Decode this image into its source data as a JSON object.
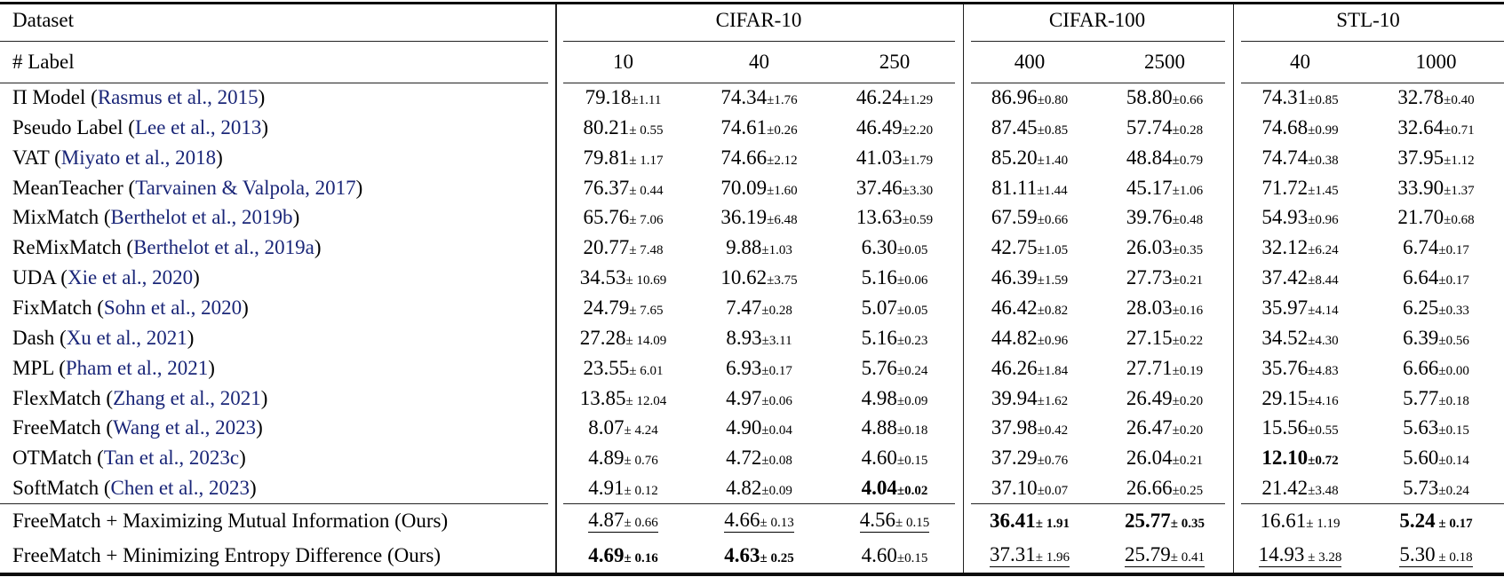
{
  "header": {
    "dataset": "Dataset",
    "label": "# Label"
  },
  "groups": [
    {
      "name": "CIFAR-10",
      "cols": [
        "10",
        "40",
        "250"
      ]
    },
    {
      "name": "CIFAR-100",
      "cols": [
        "400",
        "2500"
      ]
    },
    {
      "name": "STL-10",
      "cols": [
        "40",
        "1000"
      ]
    }
  ],
  "colors": {
    "citation": "#1a2678",
    "rule": "#0c0c0c"
  },
  "rows": [
    {
      "method": "Π Model",
      "cite": "Rasmus et al., 2015",
      "cells": [
        {
          "v": "79.18",
          "pm": "±1.11"
        },
        {
          "v": "74.34",
          "pm": "±1.76"
        },
        {
          "v": "46.24",
          "pm": "±1.29"
        },
        {
          "v": "86.96",
          "pm": "±0.80"
        },
        {
          "v": "58.80",
          "pm": "±0.66"
        },
        {
          "v": "74.31",
          "pm": "±0.85"
        },
        {
          "v": "32.78",
          "pm": "±0.40"
        }
      ]
    },
    {
      "method": "Pseudo Label",
      "cite": "Lee et al., 2013",
      "cells": [
        {
          "v": "80.21",
          "pm": "± 0.55"
        },
        {
          "v": "74.61",
          "pm": "±0.26"
        },
        {
          "v": "46.49",
          "pm": "±2.20"
        },
        {
          "v": "87.45",
          "pm": "±0.85"
        },
        {
          "v": "57.74",
          "pm": "±0.28"
        },
        {
          "v": "74.68",
          "pm": "±0.99"
        },
        {
          "v": "32.64",
          "pm": "±0.71"
        }
      ]
    },
    {
      "method": "VAT",
      "cite": "Miyato et al., 2018",
      "cells": [
        {
          "v": "79.81",
          "pm": "± 1.17"
        },
        {
          "v": "74.66",
          "pm": "±2.12"
        },
        {
          "v": "41.03",
          "pm": "±1.79"
        },
        {
          "v": "85.20",
          "pm": "±1.40"
        },
        {
          "v": "48.84",
          "pm": "±0.79"
        },
        {
          "v": "74.74",
          "pm": "±0.38"
        },
        {
          "v": "37.95",
          "pm": "±1.12"
        }
      ]
    },
    {
      "method": "MeanTeacher",
      "cite": "Tarvainen & Valpola, 2017",
      "cells": [
        {
          "v": "76.37",
          "pm": "± 0.44"
        },
        {
          "v": "70.09",
          "pm": "±1.60"
        },
        {
          "v": "37.46",
          "pm": "±3.30"
        },
        {
          "v": "81.11",
          "pm": "±1.44"
        },
        {
          "v": "45.17",
          "pm": "±1.06"
        },
        {
          "v": "71.72",
          "pm": "±1.45"
        },
        {
          "v": "33.90",
          "pm": "±1.37"
        }
      ]
    },
    {
      "method": "MixMatch",
      "cite": "Berthelot et al., 2019b",
      "cells": [
        {
          "v": "65.76",
          "pm": "± 7.06"
        },
        {
          "v": "36.19",
          "pm": "±6.48"
        },
        {
          "v": "13.63",
          "pm": "±0.59"
        },
        {
          "v": "67.59",
          "pm": "±0.66"
        },
        {
          "v": "39.76",
          "pm": "±0.48"
        },
        {
          "v": "54.93",
          "pm": "±0.96"
        },
        {
          "v": "21.70",
          "pm": "±0.68"
        }
      ]
    },
    {
      "method": "ReMixMatch",
      "cite": "Berthelot et al., 2019a",
      "cells": [
        {
          "v": "20.77",
          "pm": "± 7.48"
        },
        {
          "v": "9.88",
          "pm": "±1.03"
        },
        {
          "v": "6.30",
          "pm": "±0.05"
        },
        {
          "v": "42.75",
          "pm": "±1.05"
        },
        {
          "v": "26.03",
          "pm": "±0.35"
        },
        {
          "v": "32.12",
          "pm": "±6.24"
        },
        {
          "v": "6.74",
          "pm": "±0.17"
        }
      ]
    },
    {
      "method": "UDA",
      "cite": "Xie et al., 2020",
      "cells": [
        {
          "v": "34.53",
          "pm": "± 10.69"
        },
        {
          "v": "10.62",
          "pm": "±3.75"
        },
        {
          "v": "5.16",
          "pm": "±0.06"
        },
        {
          "v": "46.39",
          "pm": "±1.59"
        },
        {
          "v": "27.73",
          "pm": "±0.21"
        },
        {
          "v": "37.42",
          "pm": "±8.44"
        },
        {
          "v": "6.64",
          "pm": "±0.17"
        }
      ]
    },
    {
      "method": "FixMatch",
      "cite": "Sohn et al., 2020",
      "cells": [
        {
          "v": "24.79",
          "pm": "± 7.65"
        },
        {
          "v": "7.47",
          "pm": "±0.28"
        },
        {
          "v": "5.07",
          "pm": "±0.05"
        },
        {
          "v": "46.42",
          "pm": "±0.82"
        },
        {
          "v": "28.03",
          "pm": "±0.16"
        },
        {
          "v": "35.97",
          "pm": "±4.14"
        },
        {
          "v": "6.25",
          "pm": "±0.33"
        }
      ]
    },
    {
      "method": "Dash",
      "cite": "Xu et al., 2021",
      "cells": [
        {
          "v": "27.28",
          "pm": "± 14.09"
        },
        {
          "v": "8.93",
          "pm": "±3.11"
        },
        {
          "v": "5.16",
          "pm": "±0.23"
        },
        {
          "v": "44.82",
          "pm": "±0.96"
        },
        {
          "v": "27.15",
          "pm": "±0.22"
        },
        {
          "v": "34.52",
          "pm": "±4.30"
        },
        {
          "v": "6.39",
          "pm": "±0.56"
        }
      ]
    },
    {
      "method": "MPL",
      "cite": "Pham et al., 2021",
      "cells": [
        {
          "v": "23.55",
          "pm": "± 6.01"
        },
        {
          "v": "6.93",
          "pm": "±0.17"
        },
        {
          "v": "5.76",
          "pm": "±0.24"
        },
        {
          "v": "46.26",
          "pm": "±1.84"
        },
        {
          "v": "27.71",
          "pm": "±0.19"
        },
        {
          "v": "35.76",
          "pm": "±4.83"
        },
        {
          "v": "6.66",
          "pm": "±0.00"
        }
      ]
    },
    {
      "method": "FlexMatch",
      "cite": "Zhang et al., 2021",
      "cells": [
        {
          "v": "13.85",
          "pm": "± 12.04"
        },
        {
          "v": "4.97",
          "pm": "±0.06"
        },
        {
          "v": "4.98",
          "pm": "±0.09"
        },
        {
          "v": "39.94",
          "pm": "±1.62"
        },
        {
          "v": "26.49",
          "pm": "±0.20"
        },
        {
          "v": "29.15",
          "pm": "±4.16"
        },
        {
          "v": "5.77",
          "pm": "±0.18"
        }
      ]
    },
    {
      "method": "FreeMatch",
      "cite": "Wang et al., 2023",
      "cells": [
        {
          "v": "8.07",
          "pm": "± 4.24"
        },
        {
          "v": "4.90",
          "pm": "±0.04"
        },
        {
          "v": "4.88",
          "pm": "±0.18"
        },
        {
          "v": "37.98",
          "pm": "±0.42"
        },
        {
          "v": "26.47",
          "pm": "±0.20"
        },
        {
          "v": "15.56",
          "pm": "±0.55"
        },
        {
          "v": "5.63",
          "pm": "±0.15"
        }
      ]
    },
    {
      "method": "OTMatch",
      "cite": "Tan et al., 2023c",
      "cells": [
        {
          "v": "4.89",
          "pm": "± 0.76"
        },
        {
          "v": "4.72",
          "pm": "±0.08"
        },
        {
          "v": "4.60",
          "pm": "±0.15"
        },
        {
          "v": "37.29",
          "pm": "±0.76"
        },
        {
          "v": "26.04",
          "pm": "±0.21"
        },
        {
          "v": "12.10",
          "pm": "±0.72",
          "b": true
        },
        {
          "v": "5.60",
          "pm": "±0.14"
        }
      ]
    },
    {
      "method": "SoftMatch",
      "cite": "Chen et al., 2023",
      "cells": [
        {
          "v": "4.91",
          "pm": "± 0.12"
        },
        {
          "v": "4.82",
          "pm": "±0.09"
        },
        {
          "v": "4.04",
          "pm": "±0.02",
          "b": true
        },
        {
          "v": "37.10",
          "pm": "±0.07"
        },
        {
          "v": "26.66",
          "pm": "±0.25"
        },
        {
          "v": "21.42",
          "pm": "±3.48"
        },
        {
          "v": "5.73",
          "pm": "±0.24"
        }
      ]
    },
    {
      "method": "FreeMatch + Maximizing Mutual Information (Ours)",
      "cite": null,
      "ours": true,
      "cells": [
        {
          "v": "4.87",
          "pm": "± 0.66",
          "u": true
        },
        {
          "v": "4.66",
          "pm": "± 0.13",
          "u": true
        },
        {
          "v": "4.56",
          "pm": "± 0.15",
          "u": true
        },
        {
          "v": "36.41",
          "pm": "± 1.91",
          "b": true
        },
        {
          "v": "25.77",
          "pm": "± 0.35",
          "b": true
        },
        {
          "v": "16.61",
          "pm": "± 1.19"
        },
        {
          "v": "5.24",
          "pm": " ± 0.17",
          "b": true
        }
      ]
    },
    {
      "method": "FreeMatch + Minimizing Entropy Difference (Ours)",
      "cite": null,
      "ours": true,
      "cells": [
        {
          "v": "4.69",
          "pm": "± 0.16",
          "b": true
        },
        {
          "v": "4.63",
          "pm": "± 0.25",
          "b": true
        },
        {
          "v": "4.60",
          "pm": "±0.15"
        },
        {
          "v": "37.31",
          "pm": "± 1.96",
          "u": true
        },
        {
          "v": "25.79",
          "pm": "± 0.41",
          "u": true
        },
        {
          "v": "14.93",
          "pm": " ± 3.28",
          "u": true
        },
        {
          "v": "5.30",
          "pm": " ± 0.18",
          "u": true
        }
      ]
    }
  ]
}
